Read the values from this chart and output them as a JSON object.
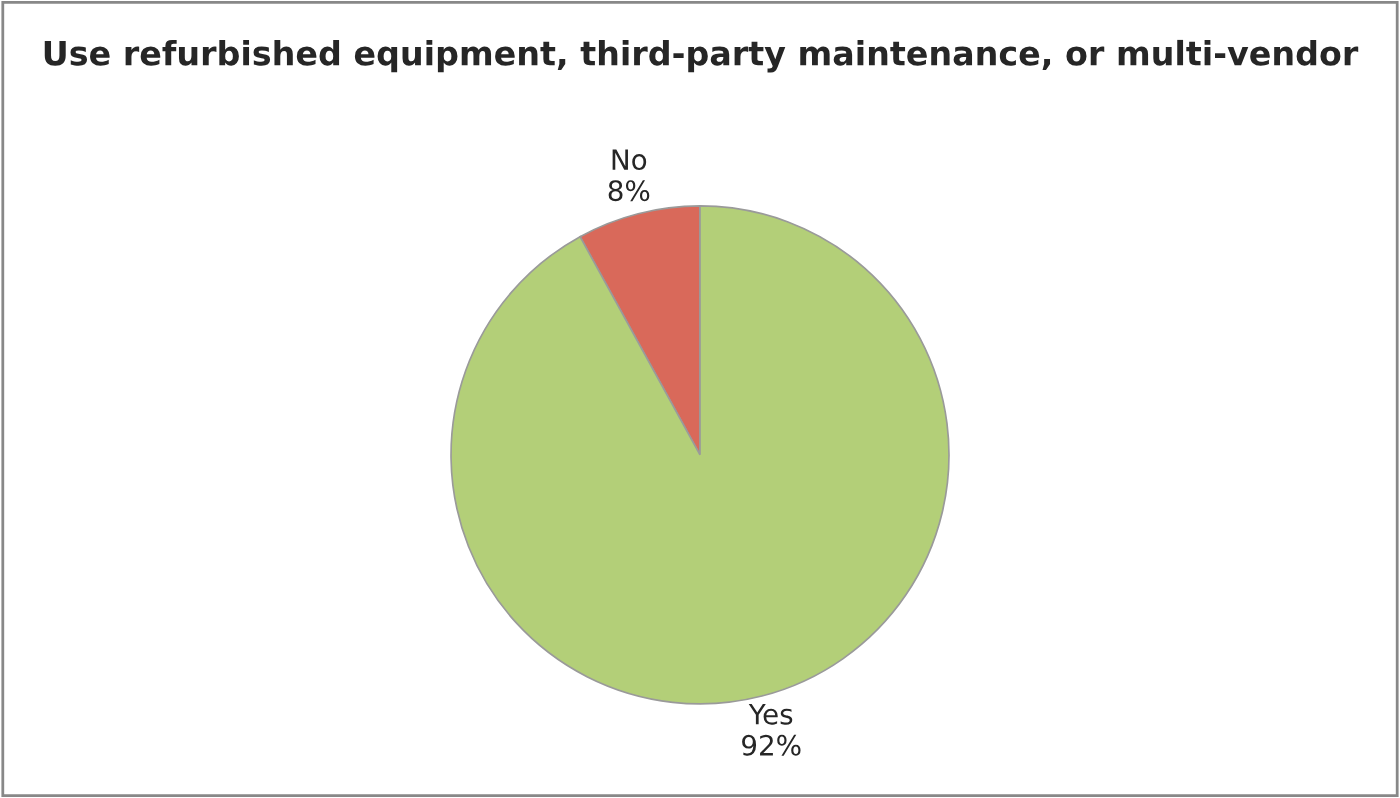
{
  "chart_data": {
    "type": "pie",
    "title": "Use refurbished equipment, third-party maintenance, or multi-vendor",
    "categories": [
      "No",
      "Yes"
    ],
    "values": [
      8,
      92
    ],
    "value_labels": [
      "8%",
      "92%"
    ],
    "colors": [
      "#d9695a",
      "#b3cf78"
    ],
    "legend": false
  }
}
